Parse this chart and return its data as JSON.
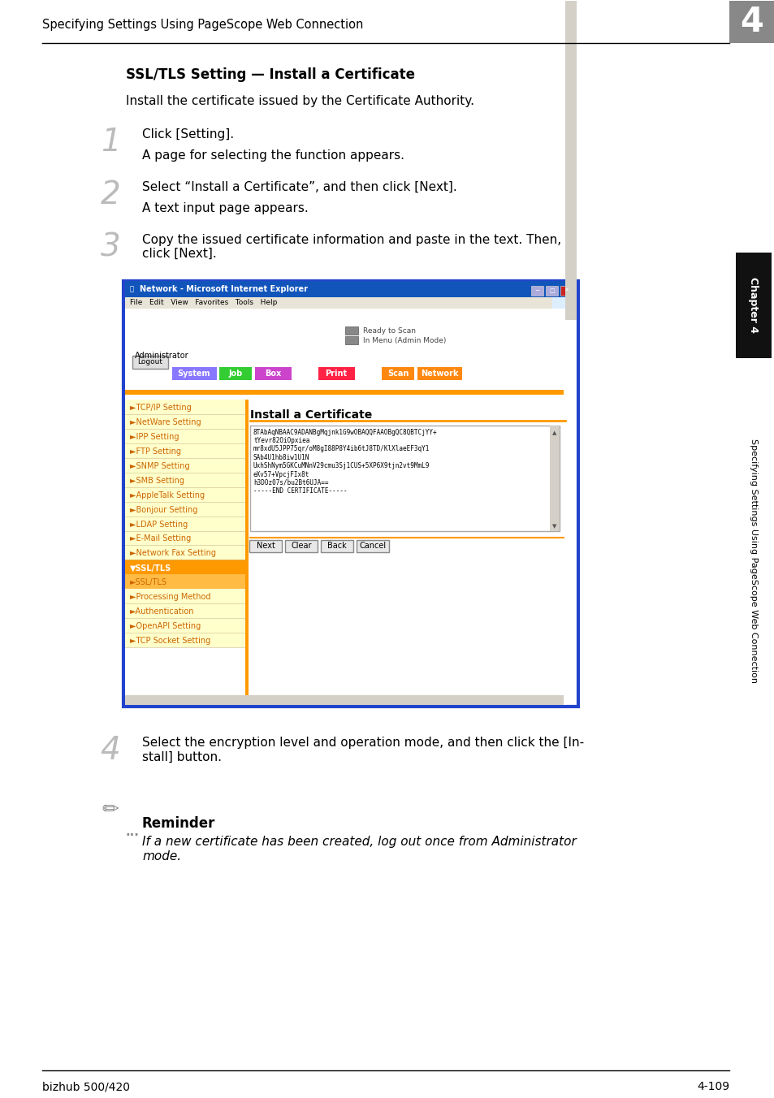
{
  "page_header": "Specifying Settings Using PageScope Web Connection",
  "chapter_number": "4",
  "section_title": "SSL/TLS Setting — Install a Certificate",
  "intro_text": "Install the certificate issued by the Certificate Authority.",
  "steps": [
    {
      "number": "1",
      "main": "Click [Setting].",
      "sub": "A page for selecting the function appears."
    },
    {
      "number": "2",
      "main": "Select “Install a Certificate”, and then click [Next].",
      "sub": "A text input page appears."
    },
    {
      "number": "3",
      "main": "Copy the issued certificate information and paste in the text. Then,\nclick [Next].",
      "sub": null
    },
    {
      "number": "4",
      "main": "Select the encryption level and operation mode, and then click the [In-\nstall] button.",
      "sub": null
    }
  ],
  "reminder_title": "Reminder",
  "reminder_text": "If a new certificate has been created, log out once from Administrator\nmode.",
  "footer_left": "bizhub 500/420",
  "footer_right": "4-109",
  "side_label": "Specifying Settings Using PageScope Web Connection",
  "chapter_label": "Chapter 4",
  "bg_color": "#ffffff",
  "header_line_color": "#000000",
  "chapter_box_color": "#888888",
  "browser_title_bar_color": "#1155bb",
  "browser_border_color": "#2244cc",
  "nav_system_color": "#8888ff",
  "nav_job_color": "#44cc44",
  "nav_box_color": "#cc44cc",
  "nav_print_color": "#ff2266",
  "nav_scan_color": "#ff8800",
  "nav_network_color": "#ff8800",
  "sidebar_bg_color": "#ffffcc",
  "sidebar_text_color": "#cc6600",
  "ssl_highlight_color": "#ff9900",
  "ssl_sub_highlight_color": "#ffbb44",
  "orange_line_color": "#ff9900",
  "cert_text": "8TAbAqNBAAC9ADANBgMqjnk1G9wOBAQQFAAOBgQC8QBTCjYY+\ntYevr82OiOpxiea\nmr8xdU5JPP75qr/oM8gI88P8Y4ib6tJ8TD/KlXlaeEF3qY1\nSAb4U1hb8iw1U1N\nUxhShNym5GKCuMNnV29cmu3Sj1CUS+5XP6X9tjn2vt9MmL9\neXv57+VpcjFIx8t\nh3DOz07s/bu2Bt6UJA==\n-----END CERTIFICATE-----"
}
